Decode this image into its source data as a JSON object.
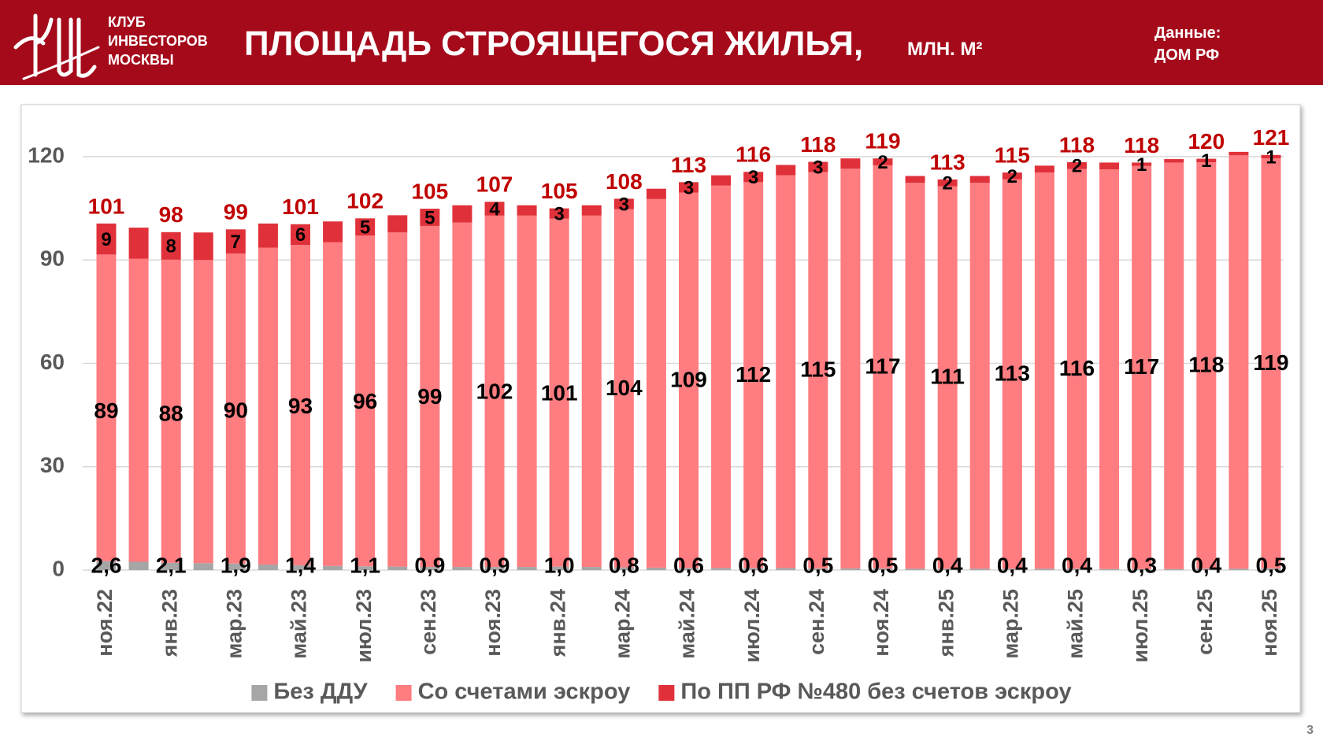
{
  "header": {
    "org": [
      "КЛУБ",
      "ИНВЕСТОРОВ",
      "МОСКВЫ"
    ],
    "source_label": "Данные:",
    "source": "ДОМ РФ"
  },
  "page_number": 3,
  "chart_data": {
    "type": "stacked_bar",
    "title": "ПЛОЩАДЬ СТРОЯЩЕГОСЯ ЖИЛЬЯ,",
    "subtitle": "МЛН. М²",
    "categories": [
      "ноя.22",
      null,
      "янв.23",
      null,
      "мар.23",
      null,
      "май.23",
      null,
      "июл.23",
      null,
      "сен.23",
      null,
      "ноя.23",
      null,
      "янв.24",
      null,
      "мар.24",
      null,
      "май.24",
      null,
      "июл.24",
      null,
      "сен.24",
      null,
      "ноя.24",
      null,
      "янв.25",
      null,
      "мар.25",
      null,
      "май.25",
      null,
      "июл.25",
      null,
      "сен.25",
      null,
      "ноя.25"
    ],
    "series": [
      {
        "name": "Без ДДУ",
        "color": "#a6a6a6",
        "values": [
          2.6,
          2.4,
          2.1,
          2.0,
          1.9,
          1.6,
          1.4,
          1.2,
          1.1,
          1.0,
          0.9,
          0.9,
          0.9,
          0.9,
          1.0,
          0.9,
          0.8,
          0.7,
          0.6,
          0.6,
          0.6,
          0.6,
          0.5,
          0.5,
          0.5,
          0.4,
          0.4,
          0.4,
          0.4,
          0.4,
          0.4,
          0.3,
          0.3,
          0.3,
          0.4,
          0.4,
          0.5
        ],
        "value_labels": [
          "2,6",
          null,
          "2,1",
          null,
          "1,9",
          null,
          "1,4",
          null,
          "1,1",
          null,
          "0,9",
          null,
          "0,9",
          null,
          "1,0",
          null,
          "0,8",
          null,
          "0,6",
          null,
          "0,6",
          null,
          "0,5",
          null,
          "0,5",
          null,
          "0,4",
          null,
          "0,4",
          null,
          "0,4",
          null,
          "0,3",
          null,
          "0,4",
          null,
          "0,5"
        ]
      },
      {
        "name": "Со счетами эскроу",
        "color": "#ff7c80",
        "values": [
          89,
          88,
          88,
          88,
          90,
          92,
          93,
          94,
          96,
          97,
          99,
          100,
          102,
          102,
          101,
          102,
          104,
          107,
          109,
          111,
          112,
          114,
          115,
          116,
          117,
          112,
          111,
          112,
          113,
          115,
          116,
          116,
          117,
          118,
          118,
          120,
          119
        ]
      },
      {
        "name": "По ПП РФ №480 без счетов эскроу",
        "color": "#e0313a",
        "values": [
          9,
          9,
          8,
          8,
          7,
          7,
          6,
          6,
          5,
          5,
          5,
          5,
          4,
          3,
          3,
          3,
          3,
          3,
          3,
          3,
          3,
          3,
          3,
          3,
          2,
          2,
          2,
          2,
          2,
          2,
          2,
          2,
          1,
          1,
          1,
          1,
          1
        ]
      }
    ],
    "totals": [
      101,
      null,
      98,
      null,
      99,
      null,
      101,
      null,
      102,
      null,
      105,
      null,
      107,
      null,
      105,
      null,
      108,
      null,
      113,
      null,
      116,
      null,
      118,
      null,
      119,
      null,
      113,
      null,
      115,
      null,
      118,
      null,
      118,
      null,
      120,
      null,
      121
    ],
    "totals_color": "#c00000",
    "ylim": [
      0,
      120
    ],
    "yticks": [
      0,
      30,
      60,
      90,
      120
    ],
    "grid": true,
    "legend": "bottom"
  }
}
